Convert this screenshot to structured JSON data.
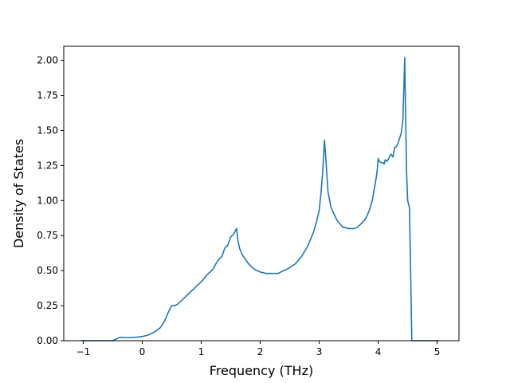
{
  "chart_data": {
    "type": "line",
    "title": "",
    "xlabel": "Frequency (THz)",
    "ylabel": "Density of States",
    "xlim": [
      -1.33,
      5.37
    ],
    "ylim": [
      0.0,
      2.1
    ],
    "grid": false,
    "legend": "none",
    "xticks": [
      -1,
      0,
      1,
      2,
      3,
      4,
      5
    ],
    "xtick_labels": [
      "−1",
      "0",
      "1",
      "2",
      "3",
      "4",
      "5"
    ],
    "yticks": [
      0.0,
      0.25,
      0.5,
      0.75,
      1.0,
      1.25,
      1.5,
      1.75,
      2.0
    ],
    "ytick_labels": [
      "0.00",
      "0.25",
      "0.50",
      "0.75",
      "1.00",
      "1.25",
      "1.50",
      "1.75",
      "2.00"
    ],
    "series": [
      {
        "color": "#1f77b4",
        "x": [
          -1.03,
          -0.5,
          -0.45,
          -0.4,
          -0.35,
          -0.3,
          -0.2,
          -0.1,
          0.0,
          0.1,
          0.2,
          0.3,
          0.35,
          0.4,
          0.45,
          0.5,
          0.55,
          0.6,
          0.65,
          0.7,
          0.8,
          0.9,
          1.0,
          1.1,
          1.2,
          1.25,
          1.3,
          1.35,
          1.4,
          1.45,
          1.5,
          1.55,
          1.6,
          1.62,
          1.65,
          1.7,
          1.8,
          1.9,
          2.0,
          2.1,
          2.2,
          2.3,
          2.4,
          2.5,
          2.6,
          2.7,
          2.8,
          2.9,
          2.95,
          3.0,
          3.03,
          3.06,
          3.09,
          3.12,
          3.15,
          3.2,
          3.3,
          3.4,
          3.5,
          3.6,
          3.65,
          3.7,
          3.75,
          3.8,
          3.85,
          3.9,
          3.95,
          3.98,
          4.0,
          4.02,
          4.05,
          4.08,
          4.1,
          4.12,
          4.15,
          4.18,
          4.2,
          4.22,
          4.25,
          4.28,
          4.3,
          4.33,
          4.36,
          4.39,
          4.42,
          4.45,
          4.48,
          4.5,
          4.53,
          4.55,
          4.57,
          4.6,
          4.8,
          5.03
        ],
        "y": [
          0.0,
          0.0,
          0.01,
          0.02,
          0.025,
          0.022,
          0.022,
          0.025,
          0.03,
          0.04,
          0.06,
          0.09,
          0.12,
          0.16,
          0.21,
          0.25,
          0.25,
          0.26,
          0.28,
          0.3,
          0.34,
          0.38,
          0.42,
          0.47,
          0.51,
          0.55,
          0.58,
          0.6,
          0.66,
          0.68,
          0.74,
          0.76,
          0.8,
          0.72,
          0.66,
          0.61,
          0.55,
          0.51,
          0.49,
          0.48,
          0.48,
          0.48,
          0.5,
          0.52,
          0.55,
          0.6,
          0.67,
          0.77,
          0.84,
          0.93,
          1.05,
          1.21,
          1.43,
          1.25,
          1.06,
          0.95,
          0.86,
          0.81,
          0.8,
          0.8,
          0.81,
          0.83,
          0.85,
          0.88,
          0.93,
          1.0,
          1.12,
          1.2,
          1.3,
          1.28,
          1.27,
          1.27,
          1.26,
          1.29,
          1.28,
          1.3,
          1.32,
          1.33,
          1.31,
          1.38,
          1.38,
          1.4,
          1.44,
          1.48,
          1.58,
          2.02,
          1.22,
          1.0,
          0.95,
          0.5,
          0.0,
          0.0,
          0.0,
          0.0
        ]
      }
    ]
  }
}
